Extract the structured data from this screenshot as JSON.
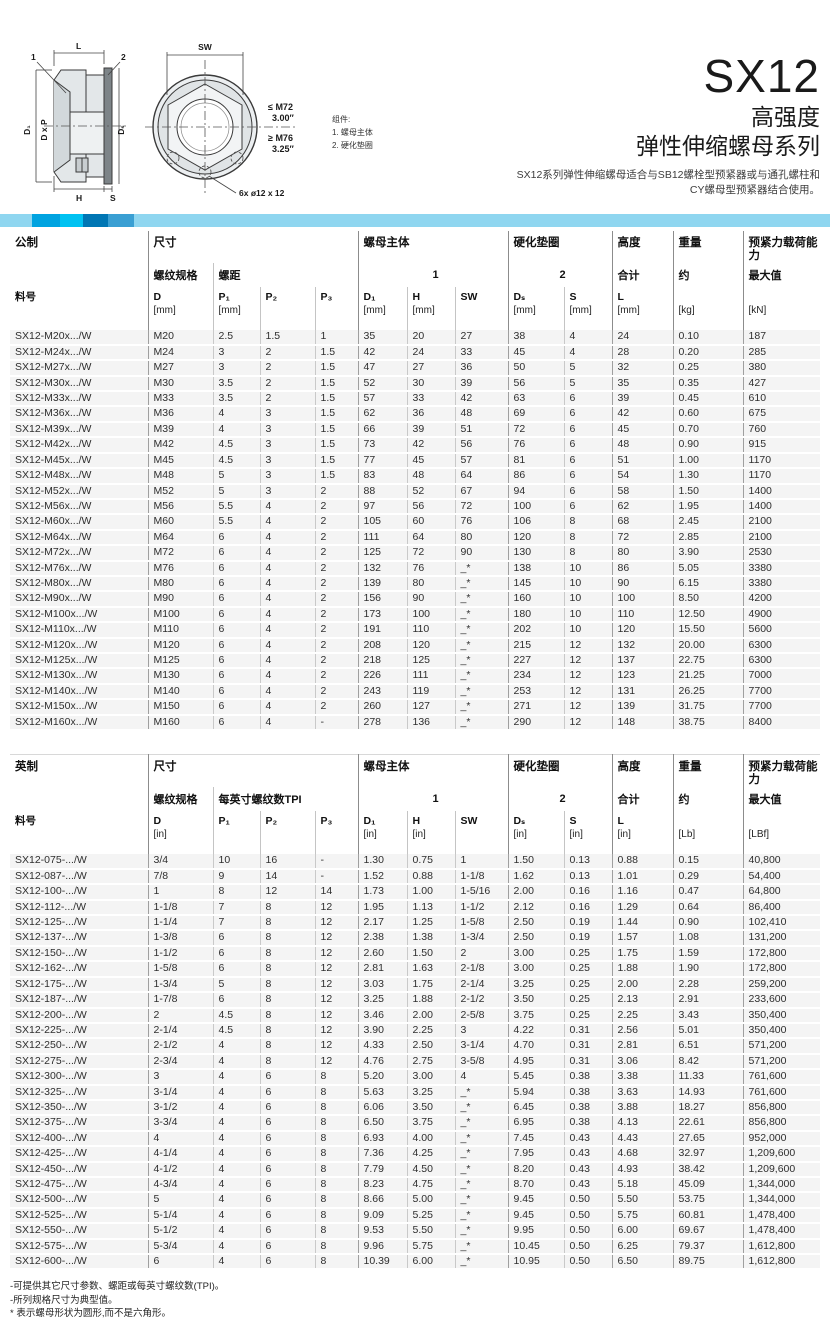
{
  "title": {
    "series": "SX12",
    "subtitle1": "高强度",
    "subtitle2": "弹性伸缩螺母系列",
    "description_line1": "SX12系列弹性伸缩螺母适合与SB12螺栓型预紧器或与通孔螺柱和",
    "description_line2": "CY螺母型预紧器结合使用。"
  },
  "colors": {
    "bar_light": "#8FD6F0",
    "bar_bright": "#00A3E0",
    "bar_cyan": "#00C2F2",
    "bar_dark": "#0076B4",
    "bar_steel": "#3A9FD3"
  },
  "drawing": {
    "labels": {
      "l": "L",
      "callout1": "1",
      "callout2": "2",
      "d1": "D₁",
      "dxp": "D x P",
      "ds": "Dₛ",
      "h": "H",
      "s": "S",
      "sw": "SW",
      "le_m72": "≤ M72",
      "le_m72_in": "3.00″",
      "ge_m76": "≥ M76",
      "ge_m76_in": "3.25″",
      "holes": "6x ø12 x 12"
    },
    "legend": {
      "title": "组件:",
      "item1": "1. 螺母主体",
      "item2": "2. 硬化垫圈"
    }
  },
  "metric_table": {
    "group_headers": {
      "system": "公制",
      "size": "尺寸",
      "nut_body": "螺母主体",
      "washer": "硬化垫圈",
      "height": "高度",
      "weight": "重量",
      "preload": "预紧力载荷能力"
    },
    "sub_headers": {
      "thread_spec": "螺纹规格",
      "pitch": "螺距",
      "one": "1",
      "two": "2",
      "total": "合计",
      "approx": "约",
      "max": "最大值"
    },
    "col_headers": [
      {
        "label": "料号",
        "unit": ""
      },
      {
        "label": "D",
        "unit": "[mm]"
      },
      {
        "label": "P₁",
        "unit": "[mm]"
      },
      {
        "label": "P₂",
        "unit": ""
      },
      {
        "label": "P₃",
        "unit": ""
      },
      {
        "label": "D₁",
        "unit": "[mm]"
      },
      {
        "label": "H",
        "unit": "[mm]"
      },
      {
        "label": "SW",
        "unit": ""
      },
      {
        "label": "Dₛ",
        "unit": "[mm]"
      },
      {
        "label": "S",
        "unit": "[mm]"
      },
      {
        "label": "L",
        "unit": "[mm]"
      },
      {
        "label": "",
        "unit": "[kg]"
      },
      {
        "label": "",
        "unit": "[kN]"
      }
    ],
    "rows": [
      [
        "SX12-M20x.../W",
        "M20",
        "2.5",
        "1.5",
        "1",
        "35",
        "20",
        "27",
        "38",
        "4",
        "24",
        "0.10",
        "187"
      ],
      [
        "SX12-M24x.../W",
        "M24",
        "3",
        "2",
        "1.5",
        "42",
        "24",
        "33",
        "45",
        "4",
        "28",
        "0.20",
        "285"
      ],
      [
        "SX12-M27x.../W",
        "M27",
        "3",
        "2",
        "1.5",
        "47",
        "27",
        "36",
        "50",
        "5",
        "32",
        "0.25",
        "380"
      ],
      [
        "SX12-M30x.../W",
        "M30",
        "3.5",
        "2",
        "1.5",
        "52",
        "30",
        "39",
        "56",
        "5",
        "35",
        "0.35",
        "427"
      ],
      [
        "SX12-M33x.../W",
        "M33",
        "3.5",
        "2",
        "1.5",
        "57",
        "33",
        "42",
        "63",
        "6",
        "39",
        "0.45",
        "610"
      ],
      [
        "SX12-M36x.../W",
        "M36",
        "4",
        "3",
        "1.5",
        "62",
        "36",
        "48",
        "69",
        "6",
        "42",
        "0.60",
        "675"
      ],
      [
        "SX12-M39x.../W",
        "M39",
        "4",
        "3",
        "1.5",
        "66",
        "39",
        "51",
        "72",
        "6",
        "45",
        "0.70",
        "760"
      ],
      [
        "SX12-M42x.../W",
        "M42",
        "4.5",
        "3",
        "1.5",
        "73",
        "42",
        "56",
        "76",
        "6",
        "48",
        "0.90",
        "915"
      ],
      [
        "SX12-M45x.../W",
        "M45",
        "4.5",
        "3",
        "1.5",
        "77",
        "45",
        "57",
        "81",
        "6",
        "51",
        "1.00",
        "1170"
      ],
      [
        "SX12-M48x.../W",
        "M48",
        "5",
        "3",
        "1.5",
        "83",
        "48",
        "64",
        "86",
        "6",
        "54",
        "1.30",
        "1170"
      ],
      [
        "SX12-M52x.../W",
        "M52",
        "5",
        "3",
        "2",
        "88",
        "52",
        "67",
        "94",
        "6",
        "58",
        "1.50",
        "1400"
      ],
      [
        "SX12-M56x.../W",
        "M56",
        "5.5",
        "4",
        "2",
        "97",
        "56",
        "72",
        "100",
        "6",
        "62",
        "1.95",
        "1400"
      ],
      [
        "SX12-M60x.../W",
        "M60",
        "5.5",
        "4",
        "2",
        "105",
        "60",
        "76",
        "106",
        "8",
        "68",
        "2.45",
        "2100"
      ],
      [
        "SX12-M64x.../W",
        "M64",
        "6",
        "4",
        "2",
        "111",
        "64",
        "80",
        "120",
        "8",
        "72",
        "2.85",
        "2100"
      ],
      [
        "SX12-M72x.../W",
        "M72",
        "6",
        "4",
        "2",
        "125",
        "72",
        "90",
        "130",
        "8",
        "80",
        "3.90",
        "2530"
      ],
      [
        "SX12-M76x.../W",
        "M76",
        "6",
        "4",
        "2",
        "132",
        "76",
        "_*",
        "138",
        "10",
        "86",
        "5.05",
        "3380"
      ],
      [
        "SX12-M80x.../W",
        "M80",
        "6",
        "4",
        "2",
        "139",
        "80",
        "_*",
        "145",
        "10",
        "90",
        "6.15",
        "3380"
      ],
      [
        "SX12-M90x.../W",
        "M90",
        "6",
        "4",
        "2",
        "156",
        "90",
        "_*",
        "160",
        "10",
        "100",
        "8.50",
        "4200"
      ],
      [
        "SX12-M100x.../W",
        "M100",
        "6",
        "4",
        "2",
        "173",
        "100",
        "_*",
        "180",
        "10",
        "110",
        "12.50",
        "4900"
      ],
      [
        "SX12-M110x.../W",
        "M110",
        "6",
        "4",
        "2",
        "191",
        "110",
        "_*",
        "202",
        "10",
        "120",
        "15.50",
        "5600"
      ],
      [
        "SX12-M120x.../W",
        "M120",
        "6",
        "4",
        "2",
        "208",
        "120",
        "_*",
        "215",
        "12",
        "132",
        "20.00",
        "6300"
      ],
      [
        "SX12-M125x.../W",
        "M125",
        "6",
        "4",
        "2",
        "218",
        "125",
        "_*",
        "227",
        "12",
        "137",
        "22.75",
        "6300"
      ],
      [
        "SX12-M130x.../W",
        "M130",
        "6",
        "4",
        "2",
        "226",
        "111",
        "_*",
        "234",
        "12",
        "123",
        "21.25",
        "7000"
      ],
      [
        "SX12-M140x.../W",
        "M140",
        "6",
        "4",
        "2",
        "243",
        "119",
        "_*",
        "253",
        "12",
        "131",
        "26.25",
        "7700"
      ],
      [
        "SX12-M150x.../W",
        "M150",
        "6",
        "4",
        "2",
        "260",
        "127",
        "_*",
        "271",
        "12",
        "139",
        "31.75",
        "7700"
      ],
      [
        "SX12-M160x.../W",
        "M160",
        "6",
        "4",
        "-",
        "278",
        "136",
        "_*",
        "290",
        "12",
        "148",
        "38.75",
        "8400"
      ]
    ]
  },
  "imperial_table": {
    "group_headers": {
      "system": "英制",
      "size": "尺寸",
      "nut_body": "螺母主体",
      "washer": "硬化垫圈",
      "height": "高度",
      "weight": "重量",
      "preload": "预紧力载荷能力"
    },
    "sub_headers": {
      "thread_spec": "螺纹规格",
      "pitch": "每英寸螺纹数TPI",
      "one": "1",
      "two": "2",
      "total": "合计",
      "approx": "约",
      "max": "最大值"
    },
    "col_headers": [
      {
        "label": "料号",
        "unit": ""
      },
      {
        "label": "D",
        "unit": "[in]"
      },
      {
        "label": "P₁",
        "unit": ""
      },
      {
        "label": "P₂",
        "unit": ""
      },
      {
        "label": "P₃",
        "unit": ""
      },
      {
        "label": "D₁",
        "unit": "[in]"
      },
      {
        "label": "H",
        "unit": "[in]"
      },
      {
        "label": "SW",
        "unit": ""
      },
      {
        "label": "Dₛ",
        "unit": "[in]"
      },
      {
        "label": "S",
        "unit": "[in]"
      },
      {
        "label": "L",
        "unit": "[in]"
      },
      {
        "label": "",
        "unit": "[Lb]"
      },
      {
        "label": "",
        "unit": "[LBf]"
      }
    ],
    "rows": [
      [
        "SX12-075-.../W",
        "3/4",
        "10",
        "16",
        "-",
        "1.30",
        "0.75",
        "1",
        "1.50",
        "0.13",
        "0.88",
        "0.15",
        "40,800"
      ],
      [
        "SX12-087-.../W",
        "7/8",
        "9",
        "14",
        "-",
        "1.52",
        "0.88",
        "1-1/8",
        "1.62",
        "0.13",
        "1.01",
        "0.29",
        "54,400"
      ],
      [
        "SX12-100-.../W",
        "1",
        "8",
        "12",
        "14",
        "1.73",
        "1.00",
        "1-5/16",
        "2.00",
        "0.16",
        "1.16",
        "0.47",
        "64,800"
      ],
      [
        "SX12-112-.../W",
        "1-1/8",
        "7",
        "8",
        "12",
        "1.95",
        "1.13",
        "1-1/2",
        "2.12",
        "0.16",
        "1.29",
        "0.64",
        "86,400"
      ],
      [
        "SX12-125-.../W",
        "1-1/4",
        "7",
        "8",
        "12",
        "2.17",
        "1.25",
        "1-5/8",
        "2.50",
        "0.19",
        "1.44",
        "0.90",
        "102,410"
      ],
      [
        "SX12-137-.../W",
        "1-3/8",
        "6",
        "8",
        "12",
        "2.38",
        "1.38",
        "1-3/4",
        "2.50",
        "0.19",
        "1.57",
        "1.08",
        "131,200"
      ],
      [
        "SX12-150-.../W",
        "1-1/2",
        "6",
        "8",
        "12",
        "2.60",
        "1.50",
        "2",
        "3.00",
        "0.25",
        "1.75",
        "1.59",
        "172,800"
      ],
      [
        "SX12-162-.../W",
        "1-5/8",
        "6",
        "8",
        "12",
        "2.81",
        "1.63",
        "2-1/8",
        "3.00",
        "0.25",
        "1.88",
        "1.90",
        "172,800"
      ],
      [
        "SX12-175-.../W",
        "1-3/4",
        "5",
        "8",
        "12",
        "3.03",
        "1.75",
        "2-1/4",
        "3.25",
        "0.25",
        "2.00",
        "2.28",
        "259,200"
      ],
      [
        "SX12-187-.../W",
        "1-7/8",
        "6",
        "8",
        "12",
        "3.25",
        "1.88",
        "2-1/2",
        "3.50",
        "0.25",
        "2.13",
        "2.91",
        "233,600"
      ],
      [
        "SX12-200-.../W",
        "2",
        "4.5",
        "8",
        "12",
        "3.46",
        "2.00",
        "2-5/8",
        "3.75",
        "0.25",
        "2.25",
        "3.43",
        "350,400"
      ],
      [
        "SX12-225-.../W",
        "2-1/4",
        "4.5",
        "8",
        "12",
        "3.90",
        "2.25",
        "3",
        "4.22",
        "0.31",
        "2.56",
        "5.01",
        "350,400"
      ],
      [
        "SX12-250-.../W",
        "2-1/2",
        "4",
        "8",
        "12",
        "4.33",
        "2.50",
        "3-1/4",
        "4.70",
        "0.31",
        "2.81",
        "6.51",
        "571,200"
      ],
      [
        "SX12-275-.../W",
        "2-3/4",
        "4",
        "8",
        "12",
        "4.76",
        "2.75",
        "3-5/8",
        "4.95",
        "0.31",
        "3.06",
        "8.42",
        "571,200"
      ],
      [
        "SX12-300-.../W",
        "3",
        "4",
        "6",
        "8",
        "5.20",
        "3.00",
        "4",
        "5.45",
        "0.38",
        "3.38",
        "11.33",
        "761,600"
      ],
      [
        "SX12-325-.../W",
        "3-1/4",
        "4",
        "6",
        "8",
        "5.63",
        "3.25",
        "_*",
        "5.94",
        "0.38",
        "3.63",
        "14.93",
        "761,600"
      ],
      [
        "SX12-350-.../W",
        "3-1/2",
        "4",
        "6",
        "8",
        "6.06",
        "3.50",
        "_*",
        "6.45",
        "0.38",
        "3.88",
        "18.27",
        "856,800"
      ],
      [
        "SX12-375-.../W",
        "3-3/4",
        "4",
        "6",
        "8",
        "6.50",
        "3.75",
        "_*",
        "6.95",
        "0.38",
        "4.13",
        "22.61",
        "856,800"
      ],
      [
        "SX12-400-.../W",
        "4",
        "4",
        "6",
        "8",
        "6.93",
        "4.00",
        "_*",
        "7.45",
        "0.43",
        "4.43",
        "27.65",
        "952,000"
      ],
      [
        "SX12-425-.../W",
        "4-1/4",
        "4",
        "6",
        "8",
        "7.36",
        "4.25",
        "_*",
        "7.95",
        "0.43",
        "4.68",
        "32.97",
        "1,209,600"
      ],
      [
        "SX12-450-.../W",
        "4-1/2",
        "4",
        "6",
        "8",
        "7.79",
        "4.50",
        "_*",
        "8.20",
        "0.43",
        "4.93",
        "38.42",
        "1,209,600"
      ],
      [
        "SX12-475-.../W",
        "4-3/4",
        "4",
        "6",
        "8",
        "8.23",
        "4.75",
        "_*",
        "8.70",
        "0.43",
        "5.18",
        "45.09",
        "1,344,000"
      ],
      [
        "SX12-500-.../W",
        "5",
        "4",
        "6",
        "8",
        "8.66",
        "5.00",
        "_*",
        "9.45",
        "0.50",
        "5.50",
        "53.75",
        "1,344,000"
      ],
      [
        "SX12-525-.../W",
        "5-1/4",
        "4",
        "6",
        "8",
        "9.09",
        "5.25",
        "_*",
        "9.45",
        "0.50",
        "5.75",
        "60.81",
        "1,478,400"
      ],
      [
        "SX12-550-.../W",
        "5-1/2",
        "4",
        "6",
        "8",
        "9.53",
        "5.50",
        "_*",
        "9.95",
        "0.50",
        "6.00",
        "69.67",
        "1,478,400"
      ],
      [
        "SX12-575-.../W",
        "5-3/4",
        "4",
        "6",
        "8",
        "9.96",
        "5.75",
        "_*",
        "10.45",
        "0.50",
        "6.25",
        "79.37",
        "1,612,800"
      ],
      [
        "SX12-600-.../W",
        "6",
        "4",
        "6",
        "8",
        "10.39",
        "6.00",
        "_*",
        "10.95",
        "0.50",
        "6.50",
        "89.75",
        "1,612,800"
      ]
    ]
  },
  "footnotes": {
    "line1": "-可提供其它尺寸参数、螺距或每英寸螺纹数(TPI)。",
    "line2": "-所列规格尺寸为典型值。",
    "line3": "* 表示螺母形状为圆形,而不是六角形。"
  }
}
